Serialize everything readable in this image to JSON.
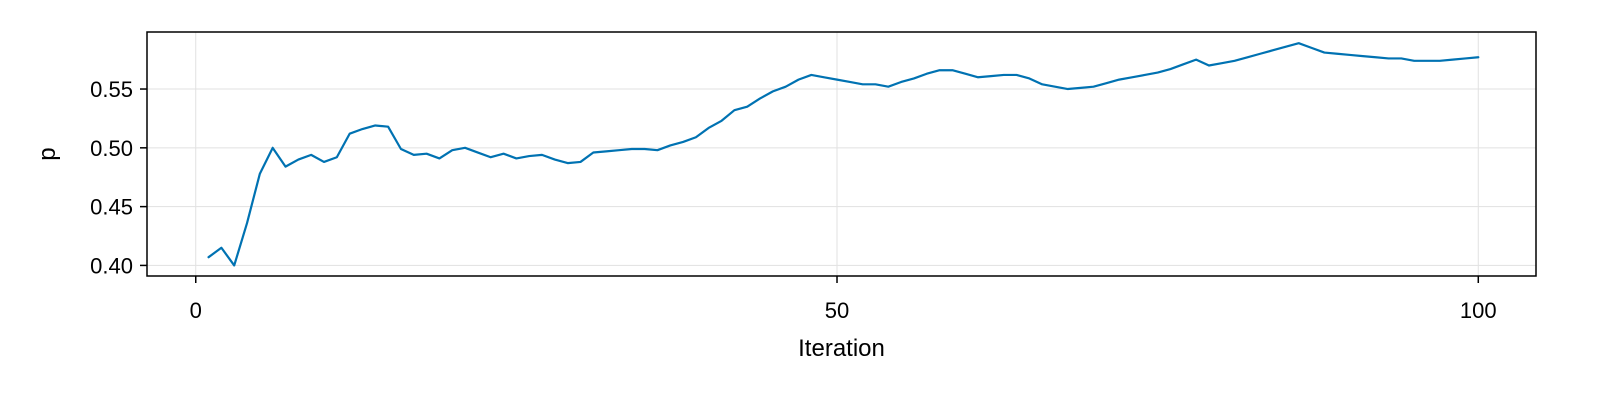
{
  "chart_data": {
    "type": "line",
    "title": "",
    "xlabel": "Iteration",
    "ylabel": "p",
    "xlim": [
      -3.8,
      104.5
    ],
    "ylim": [
      0.391,
      0.5985
    ],
    "xticks": [
      0,
      50,
      100
    ],
    "xtick_labels": [
      "0",
      "50",
      "100"
    ],
    "yticks": [
      0.4,
      0.45,
      0.5,
      0.55
    ],
    "ytick_labels": [
      "0.40",
      "0.45",
      "0.50",
      "0.55"
    ],
    "grid": true,
    "legend": "none",
    "line_color": "#0072b2",
    "series": [
      {
        "x": [
          1,
          2,
          3,
          4,
          5,
          6,
          7,
          8,
          9,
          10,
          11,
          12,
          13,
          14,
          15,
          16,
          17,
          18,
          19,
          20,
          21,
          22,
          23,
          24,
          25,
          26,
          27,
          28,
          29,
          30,
          31,
          32,
          33,
          34,
          35,
          36,
          37,
          38,
          39,
          40,
          41,
          42,
          43,
          44,
          45,
          46,
          47,
          48,
          49,
          50,
          51,
          52,
          53,
          54,
          55,
          56,
          57,
          58,
          59,
          60,
          61,
          62,
          63,
          64,
          65,
          66,
          67,
          68,
          69,
          70,
          71,
          72,
          73,
          74,
          75,
          76,
          77,
          78,
          79,
          80,
          81,
          82,
          83,
          84,
          85,
          86,
          87,
          88,
          89,
          90,
          91,
          92,
          93,
          94,
          95,
          96,
          97,
          98,
          99,
          100
        ],
        "values": [
          0.407,
          0.415,
          0.4,
          0.436,
          0.478,
          0.5,
          0.484,
          0.49,
          0.494,
          0.488,
          0.492,
          0.512,
          0.516,
          0.519,
          0.518,
          0.499,
          0.494,
          0.495,
          0.491,
          0.498,
          0.5,
          0.496,
          0.492,
          0.495,
          0.491,
          0.493,
          0.494,
          0.49,
          0.487,
          0.488,
          0.496,
          0.497,
          0.498,
          0.499,
          0.499,
          0.498,
          0.502,
          0.505,
          0.509,
          0.517,
          0.523,
          0.532,
          0.535,
          0.542,
          0.548,
          0.552,
          0.558,
          0.562,
          0.56,
          0.558,
          0.556,
          0.554,
          0.554,
          0.552,
          0.556,
          0.559,
          0.563,
          0.566,
          0.566,
          0.563,
          0.56,
          0.561,
          0.562,
          0.562,
          0.559,
          0.554,
          0.552,
          0.55,
          0.551,
          0.552,
          0.555,
          0.558,
          0.56,
          0.562,
          0.564,
          0.567,
          0.571,
          0.575,
          0.57,
          0.572,
          0.574,
          0.577,
          0.58,
          0.583,
          0.586,
          0.589,
          0.585,
          0.581,
          0.58,
          0.579,
          0.578,
          0.577,
          0.576,
          0.576,
          0.574,
          0.574,
          0.574,
          0.575,
          0.576,
          0.577
        ]
      }
    ]
  }
}
